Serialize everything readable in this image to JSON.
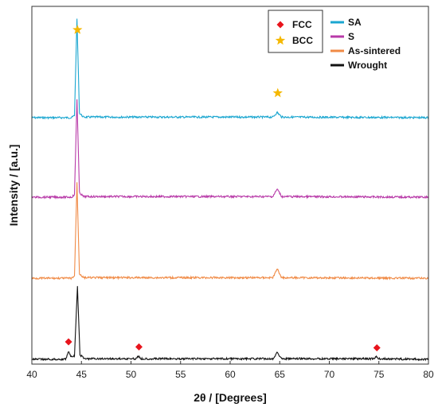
{
  "chart_data": {
    "type": "line",
    "xlabel": "2θ / [Degrees]",
    "ylabel": "Intensity / [a.u.]",
    "xlim": [
      40,
      80
    ],
    "x_ticks": [
      40,
      45,
      50,
      55,
      60,
      65,
      70,
      75,
      80
    ],
    "y_ticks_labeled": false,
    "grid": false,
    "series": [
      {
        "name": "SA",
        "color": "#1aa6d0",
        "points": [
          [
            40,
            0.0
          ],
          [
            44.0,
            0.0
          ],
          [
            44.3,
            0.4
          ],
          [
            44.55,
            17.0
          ],
          [
            44.8,
            0.8
          ],
          [
            45.2,
            0.1
          ],
          [
            64.3,
            0.1
          ],
          [
            64.75,
            0.9
          ],
          [
            65.2,
            0.1
          ],
          [
            80,
            0.0
          ]
        ]
      },
      {
        "name": "S",
        "color": "#b83aa8",
        "points": [
          [
            40,
            0.0
          ],
          [
            44.0,
            0.0
          ],
          [
            44.3,
            0.4
          ],
          [
            44.55,
            17.0
          ],
          [
            44.8,
            0.8
          ],
          [
            45.2,
            0.1
          ],
          [
            64.3,
            0.1
          ],
          [
            64.75,
            1.4
          ],
          [
            65.2,
            0.1
          ],
          [
            80,
            0.0
          ]
        ]
      },
      {
        "name": "As-sintered",
        "color": "#f08a45",
        "points": [
          [
            40,
            0.0
          ],
          [
            44.0,
            0.0
          ],
          [
            44.3,
            0.4
          ],
          [
            44.55,
            16.5
          ],
          [
            44.8,
            0.8
          ],
          [
            45.2,
            0.1
          ],
          [
            64.3,
            0.1
          ],
          [
            64.75,
            1.6
          ],
          [
            65.2,
            0.1
          ],
          [
            80,
            0.0
          ]
        ]
      },
      {
        "name": "Wrought",
        "color": "#111111",
        "points": [
          [
            40,
            0.0
          ],
          [
            43.4,
            0.0
          ],
          [
            43.7,
            1.4
          ],
          [
            43.95,
            0.4
          ],
          [
            44.3,
            0.6
          ],
          [
            44.6,
            12.5
          ],
          [
            44.85,
            0.8
          ],
          [
            45.3,
            0.1
          ],
          [
            50.5,
            0.1
          ],
          [
            50.75,
            0.6
          ],
          [
            51.0,
            0.1
          ],
          [
            64.3,
            0.1
          ],
          [
            64.75,
            1.2
          ],
          [
            65.2,
            0.1
          ],
          [
            74.5,
            0.1
          ],
          [
            74.75,
            0.4
          ],
          [
            75.0,
            0.1
          ],
          [
            80,
            0.0
          ]
        ]
      }
    ],
    "markers": [
      {
        "symbol": "star",
        "label": "BCC",
        "color": "#f5b800",
        "x": 44.6,
        "series": "SA"
      },
      {
        "symbol": "star",
        "label": "BCC",
        "color": "#f5b800",
        "x": 64.8,
        "series": "SA"
      },
      {
        "symbol": "diamond",
        "label": "FCC",
        "color": "#e8141c",
        "x": 43.7,
        "series": "Wrought"
      },
      {
        "symbol": "diamond",
        "label": "FCC",
        "color": "#e8141c",
        "x": 50.8,
        "series": "Wrought"
      },
      {
        "symbol": "diamond",
        "label": "FCC",
        "color": "#e8141c",
        "x": 74.8,
        "series": "Wrought"
      }
    ],
    "legend_phases": [
      {
        "label": "FCC",
        "symbol": "diamond",
        "color": "#e8141c"
      },
      {
        "label": "BCC",
        "symbol": "star",
        "color": "#f5b800"
      }
    ],
    "legend_series": [
      "SA",
      "S",
      "As-sintered",
      "Wrought"
    ],
    "legend_placement": "top-right"
  }
}
